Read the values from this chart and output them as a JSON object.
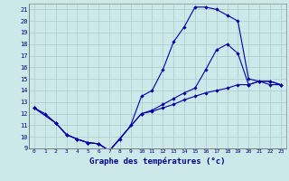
{
  "title": "Graphe des températures (°c)",
  "bg_color": "#cce8e8",
  "grid_color": "#aacccc",
  "line_color": "#0000aa",
  "xlim": [
    -0.5,
    23.5
  ],
  "ylim": [
    9,
    21.5
  ],
  "xticks": [
    0,
    1,
    2,
    3,
    4,
    5,
    6,
    7,
    8,
    9,
    10,
    11,
    12,
    13,
    14,
    15,
    16,
    17,
    18,
    19,
    20,
    21,
    22,
    23
  ],
  "yticks": [
    9,
    10,
    11,
    12,
    13,
    14,
    15,
    16,
    17,
    18,
    19,
    20,
    21
  ],
  "line1_x": [
    0,
    1,
    2,
    3,
    4,
    5,
    6,
    7,
    8,
    9,
    10,
    11,
    12,
    13,
    14,
    15,
    16,
    17,
    18,
    19,
    20,
    21,
    22,
    23
  ],
  "line1_y": [
    12.5,
    12,
    11.2,
    10.2,
    9.8,
    9.5,
    9.4,
    8.8,
    9.8,
    11.0,
    13.5,
    14.0,
    15.8,
    18.2,
    19.5,
    21.2,
    21.2,
    21.0,
    20.5,
    20.0,
    15.0,
    14.8,
    14.5,
    14.5
  ],
  "line2_x": [
    0,
    2,
    3,
    4,
    5,
    6,
    7,
    10,
    11,
    12,
    13,
    14,
    15,
    16,
    17,
    18,
    19,
    20,
    21,
    22,
    23
  ],
  "line2_y": [
    12.5,
    11.2,
    10.2,
    9.8,
    9.5,
    9.4,
    8.8,
    12.0,
    12.3,
    12.8,
    13.3,
    13.8,
    14.2,
    15.8,
    17.5,
    18.0,
    17.2,
    14.5,
    14.8,
    14.8,
    14.5
  ],
  "line3_x": [
    0,
    2,
    3,
    4,
    5,
    6,
    7,
    10,
    11,
    12,
    13,
    14,
    15,
    16,
    17,
    18,
    19,
    20,
    21,
    22,
    23
  ],
  "line3_y": [
    12.5,
    11.2,
    10.2,
    9.8,
    9.5,
    9.4,
    8.8,
    12.0,
    12.2,
    12.5,
    12.8,
    13.2,
    13.5,
    13.8,
    14.0,
    14.2,
    14.5,
    14.5,
    14.8,
    14.8,
    14.5
  ]
}
